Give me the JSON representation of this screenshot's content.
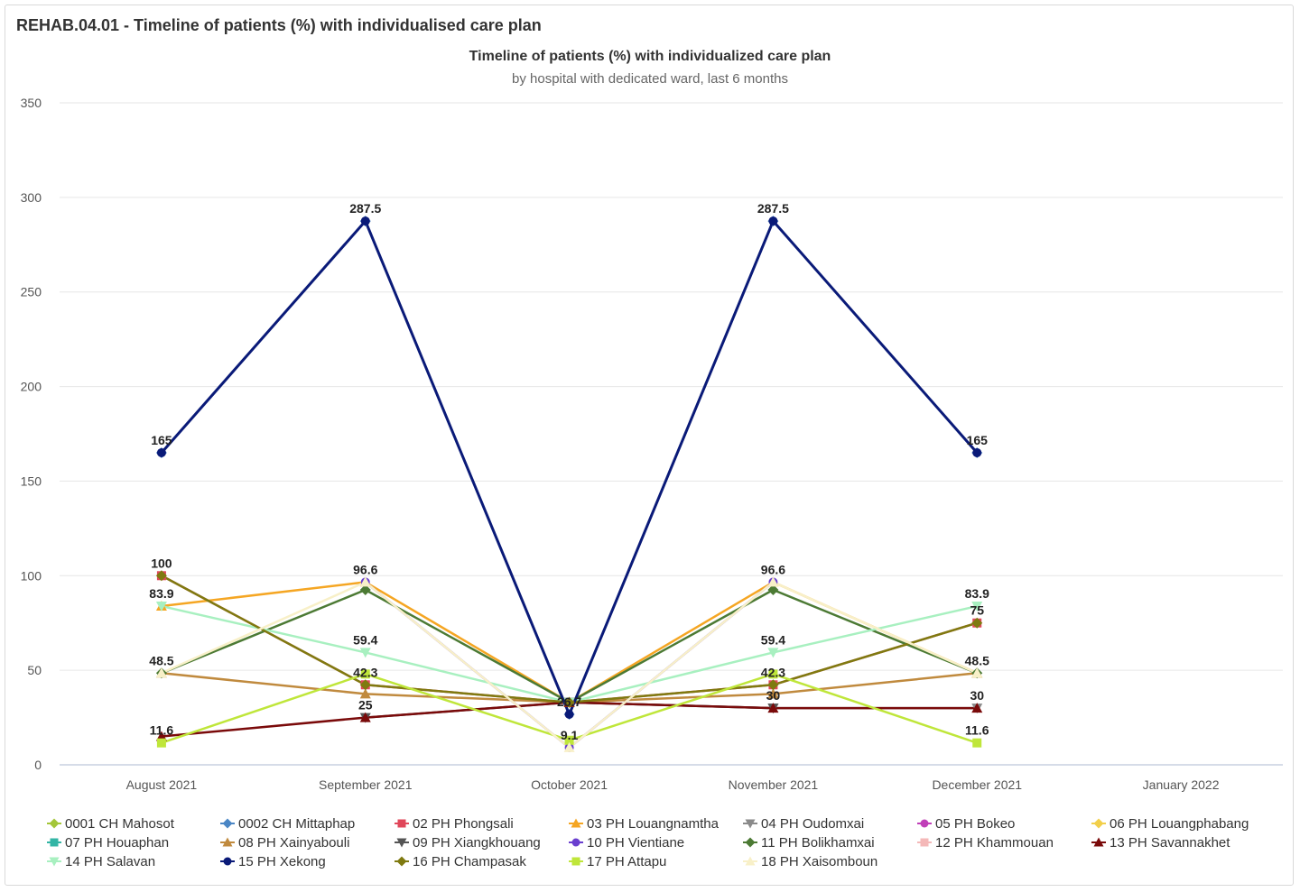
{
  "header": {
    "title": "REHAB.04.01 - Timeline of patients (%) with individualised care plan"
  },
  "chart_data": {
    "type": "line",
    "title": "Timeline of patients (%) with individualized care plan",
    "subtitle": "by hospital with dedicated ward, last 6 months",
    "categories": [
      "August 2021",
      "September 2021",
      "October 2021",
      "November 2021",
      "December 2021",
      "January 2022"
    ],
    "y_ticks": [
      "0",
      "50",
      "100",
      "150",
      "200",
      "250",
      "300",
      "350"
    ],
    "ylim": [
      0,
      350
    ],
    "grid": true,
    "legend_position": "bottom",
    "series": [
      {
        "name": "0001 CH Mahosot",
        "color": "#a4c639",
        "marker": "diamond",
        "values": [
          null,
          null,
          null,
          null,
          null,
          null
        ]
      },
      {
        "name": "0002 CH Mittaphap",
        "color": "#4a86c5",
        "marker": "diamond",
        "values": [
          165,
          287.5,
          26.7,
          287.5,
          165,
          null
        ]
      },
      {
        "name": "02 PH Phongsali",
        "color": "#e0475a",
        "marker": "square",
        "values": [
          100,
          42.3,
          33,
          42.3,
          75,
          null
        ]
      },
      {
        "name": "03 PH Louangnamtha",
        "color": "#f5a623",
        "marker": "triangle",
        "values": [
          83.9,
          96.6,
          33,
          96.6,
          48.5,
          null
        ]
      },
      {
        "name": "04 PH Oudomxai",
        "color": "#8a8a8a",
        "marker": "triangle-down",
        "values": [
          null,
          null,
          33,
          30,
          30,
          null
        ]
      },
      {
        "name": "05 PH Bokeo",
        "color": "#c03fb8",
        "marker": "circle",
        "values": [
          null,
          null,
          null,
          null,
          null,
          null
        ]
      },
      {
        "name": "06 PH Louangphabang",
        "color": "#f2cf4a",
        "marker": "diamond",
        "values": [
          null,
          null,
          null,
          null,
          null,
          null
        ]
      },
      {
        "name": "07 PH Houaphan",
        "color": "#33b5a5",
        "marker": "square",
        "values": [
          null,
          null,
          null,
          null,
          null,
          null
        ]
      },
      {
        "name": "08 PH Xainyabouli",
        "color": "#c08a3e",
        "marker": "triangle",
        "values": [
          48.5,
          37.5,
          33,
          37.5,
          48.5,
          null
        ]
      },
      {
        "name": "09 PH Xiangkhouang",
        "color": "#555555",
        "marker": "triangle-down",
        "values": [
          null,
          25,
          33,
          30,
          null,
          null
        ]
      },
      {
        "name": "10 PH Vientiane",
        "color": "#6a3fcf",
        "marker": "circle",
        "values": [
          null,
          96.6,
          9.1,
          96.6,
          null,
          null
        ]
      },
      {
        "name": "11 PH Bolikhamxai",
        "color": "#4c7a34",
        "marker": "diamond",
        "values": [
          48.5,
          92.5,
          33,
          92.5,
          48.5,
          null
        ]
      },
      {
        "name": "12 PH Khammouan",
        "color": "#f4b8b8",
        "marker": "square",
        "values": [
          null,
          null,
          null,
          null,
          null,
          null
        ]
      },
      {
        "name": "13 PH Savannakhet",
        "color": "#7a0a0a",
        "marker": "triangle",
        "values": [
          15,
          25,
          33,
          30,
          30,
          null
        ]
      },
      {
        "name": "14 PH Salavan",
        "color": "#a8f0c0",
        "marker": "triangle-down",
        "values": [
          83.9,
          59.4,
          33,
          59.4,
          83.9,
          null
        ]
      },
      {
        "name": "15 PH Xekong",
        "color": "#0a1a78",
        "marker": "circle",
        "values": [
          165,
          287.5,
          26.7,
          287.5,
          165,
          null
        ]
      },
      {
        "name": "16 PH Champasak",
        "color": "#7f7a10",
        "marker": "diamond",
        "values": [
          100,
          42.3,
          33,
          42.3,
          75,
          null
        ]
      },
      {
        "name": "17 PH Attapu",
        "color": "#bfe63a",
        "marker": "square",
        "values": [
          11.6,
          48,
          13,
          48,
          11.6,
          null
        ]
      },
      {
        "name": "18 PH Xaisomboun",
        "color": "#f8f0c8",
        "marker": "triangle",
        "values": [
          48.5,
          96.6,
          9.1,
          96.6,
          48.5,
          null
        ]
      }
    ],
    "data_labels": [
      {
        "text": "165",
        "x": "August 2021",
        "y": 165
      },
      {
        "text": "287.5",
        "x": "September 2021",
        "y": 287.5
      },
      {
        "text": "26.7",
        "x": "October 2021",
        "y": 26.7
      },
      {
        "text": "287.5",
        "x": "November 2021",
        "y": 287.5
      },
      {
        "text": "165",
        "x": "December 2021",
        "y": 165
      },
      {
        "text": "100",
        "x": "August 2021",
        "y": 100
      },
      {
        "text": "83.9",
        "x": "August 2021",
        "y": 83.9
      },
      {
        "text": "48.5",
        "x": "August 2021",
        "y": 48.5
      },
      {
        "text": "11.6",
        "x": "August 2021",
        "y": 11.6
      },
      {
        "text": "96.6",
        "x": "September 2021",
        "y": 96.6
      },
      {
        "text": "59.4",
        "x": "September 2021",
        "y": 59.4
      },
      {
        "text": "42.3",
        "x": "September 2021",
        "y": 42.3
      },
      {
        "text": "25",
        "x": "September 2021",
        "y": 25
      },
      {
        "text": "9.1",
        "x": "October 2021",
        "y": 9.1
      },
      {
        "text": "96.6",
        "x": "November 2021",
        "y": 96.6
      },
      {
        "text": "59.4",
        "x": "November 2021",
        "y": 59.4
      },
      {
        "text": "42.3",
        "x": "November 2021",
        "y": 42.3
      },
      {
        "text": "30",
        "x": "November 2021",
        "y": 30
      },
      {
        "text": "83.9",
        "x": "December 2021",
        "y": 83.9
      },
      {
        "text": "75",
        "x": "December 2021",
        "y": 75
      },
      {
        "text": "48.5",
        "x": "December 2021",
        "y": 48.5
      },
      {
        "text": "30",
        "x": "December 2021",
        "y": 30
      },
      {
        "text": "11.6",
        "x": "December 2021",
        "y": 11.6
      }
    ]
  }
}
